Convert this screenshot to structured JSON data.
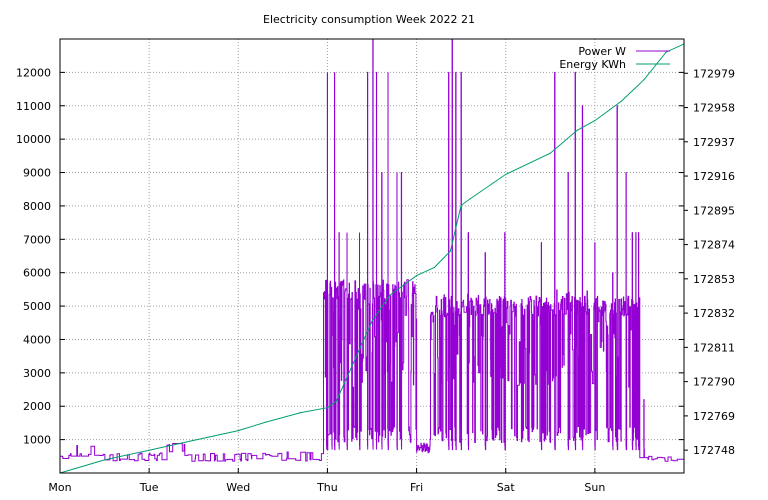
{
  "chart_data": {
    "type": "line",
    "title": "Electricity consumption Week 2022 21",
    "x_categories": [
      "Mon",
      "Tue",
      "Wed",
      "Thu",
      "Fri",
      "Sat",
      "Sun"
    ],
    "xlim_days": [
      0,
      7
    ],
    "y_left": {
      "ticks": [
        1000,
        2000,
        3000,
        4000,
        5000,
        6000,
        7000,
        8000,
        9000,
        10000,
        11000,
        12000
      ],
      "ylim": [
        0,
        13000
      ]
    },
    "y_right": {
      "ticks": [
        172748,
        172769,
        172790,
        172811,
        172832,
        172853,
        172874,
        172895,
        172916,
        172937,
        172958,
        172979
      ],
      "ylim": [
        172734,
        173000
      ]
    },
    "grid": true,
    "legend_position": "top-right",
    "series": [
      {
        "name": "Power W",
        "axis": "left",
        "color": "#9400d3",
        "pattern": {
          "base_segments": [
            {
              "from": 0.0,
              "to": 0.12,
              "lo": 400,
              "hi": 600
            },
            {
              "from": 0.12,
              "to": 0.4,
              "lo": 500,
              "hi": 850
            },
            {
              "from": 0.4,
              "to": 1.2,
              "lo": 350,
              "hi": 600
            },
            {
              "from": 1.2,
              "to": 1.4,
              "lo": 600,
              "hi": 900
            },
            {
              "from": 1.4,
              "to": 2.3,
              "lo": 350,
              "hi": 600
            },
            {
              "from": 2.3,
              "to": 2.45,
              "lo": 500,
              "hi": 900
            },
            {
              "from": 2.45,
              "to": 2.95,
              "lo": 350,
              "hi": 650
            },
            {
              "from": 2.95,
              "to": 3.1,
              "lo": 500,
              "hi": 800
            },
            {
              "from": 6.5,
              "to": 7.0,
              "lo": 350,
              "hi": 500
            }
          ],
          "active_windows": [
            {
              "from": 2.95,
              "to": 4.0,
              "level": 5500
            },
            {
              "from": 4.0,
              "to": 4.15,
              "level": 800
            },
            {
              "from": 4.15,
              "to": 6.5,
              "level": 5000
            }
          ],
          "spikes": [
            {
              "x": 2.99,
              "y": 2550
            },
            {
              "x": 3.05,
              "y": 2550
            },
            {
              "x": 3.0,
              "y": 12000
            },
            {
              "x": 3.08,
              "y": 12000
            },
            {
              "x": 3.13,
              "y": 7200
            },
            {
              "x": 3.22,
              "y": 7200
            },
            {
              "x": 3.36,
              "y": 7200
            },
            {
              "x": 3.45,
              "y": 12000
            },
            {
              "x": 3.51,
              "y": 13000
            },
            {
              "x": 3.55,
              "y": 12000
            },
            {
              "x": 3.61,
              "y": 9000
            },
            {
              "x": 3.68,
              "y": 12000
            },
            {
              "x": 3.78,
              "y": 9000
            },
            {
              "x": 3.83,
              "y": 9000
            },
            {
              "x": 4.36,
              "y": 12000
            },
            {
              "x": 4.4,
              "y": 13000
            },
            {
              "x": 4.44,
              "y": 12000
            },
            {
              "x": 4.5,
              "y": 12000
            },
            {
              "x": 4.58,
              "y": 7200
            },
            {
              "x": 4.77,
              "y": 6600
            },
            {
              "x": 4.99,
              "y": 7200
            },
            {
              "x": 5.4,
              "y": 6900
            },
            {
              "x": 5.55,
              "y": 12000
            },
            {
              "x": 5.7,
              "y": 9000
            },
            {
              "x": 5.78,
              "y": 12000
            },
            {
              "x": 5.86,
              "y": 11000
            },
            {
              "x": 6.0,
              "y": 6900
            },
            {
              "x": 6.2,
              "y": 6000
            },
            {
              "x": 6.25,
              "y": 11000
            },
            {
              "x": 6.35,
              "y": 9000
            },
            {
              "x": 6.42,
              "y": 7200
            },
            {
              "x": 6.46,
              "y": 7200
            },
            {
              "x": 6.49,
              "y": 7200
            },
            {
              "x": 6.55,
              "y": 2200
            }
          ]
        }
      },
      {
        "name": "Energy KWh",
        "axis": "right",
        "color": "#009e73",
        "x_days": [
          0.0,
          0.5,
          1.0,
          1.5,
          2.0,
          2.3,
          2.7,
          3.0,
          3.1,
          3.5,
          3.7,
          4.0,
          4.2,
          4.38,
          4.5,
          4.6,
          5.0,
          5.5,
          5.8,
          6.0,
          6.3,
          6.55,
          6.8,
          7.0
        ],
        "y_energy": [
          172734,
          172742,
          172748,
          172754,
          172760,
          172765,
          172771,
          172774,
          172778,
          172827,
          172843,
          172855,
          172860,
          172870,
          172898,
          172902,
          172917,
          172930,
          172944,
          172950,
          172962,
          172975,
          172992,
          172997
        ]
      }
    ]
  }
}
